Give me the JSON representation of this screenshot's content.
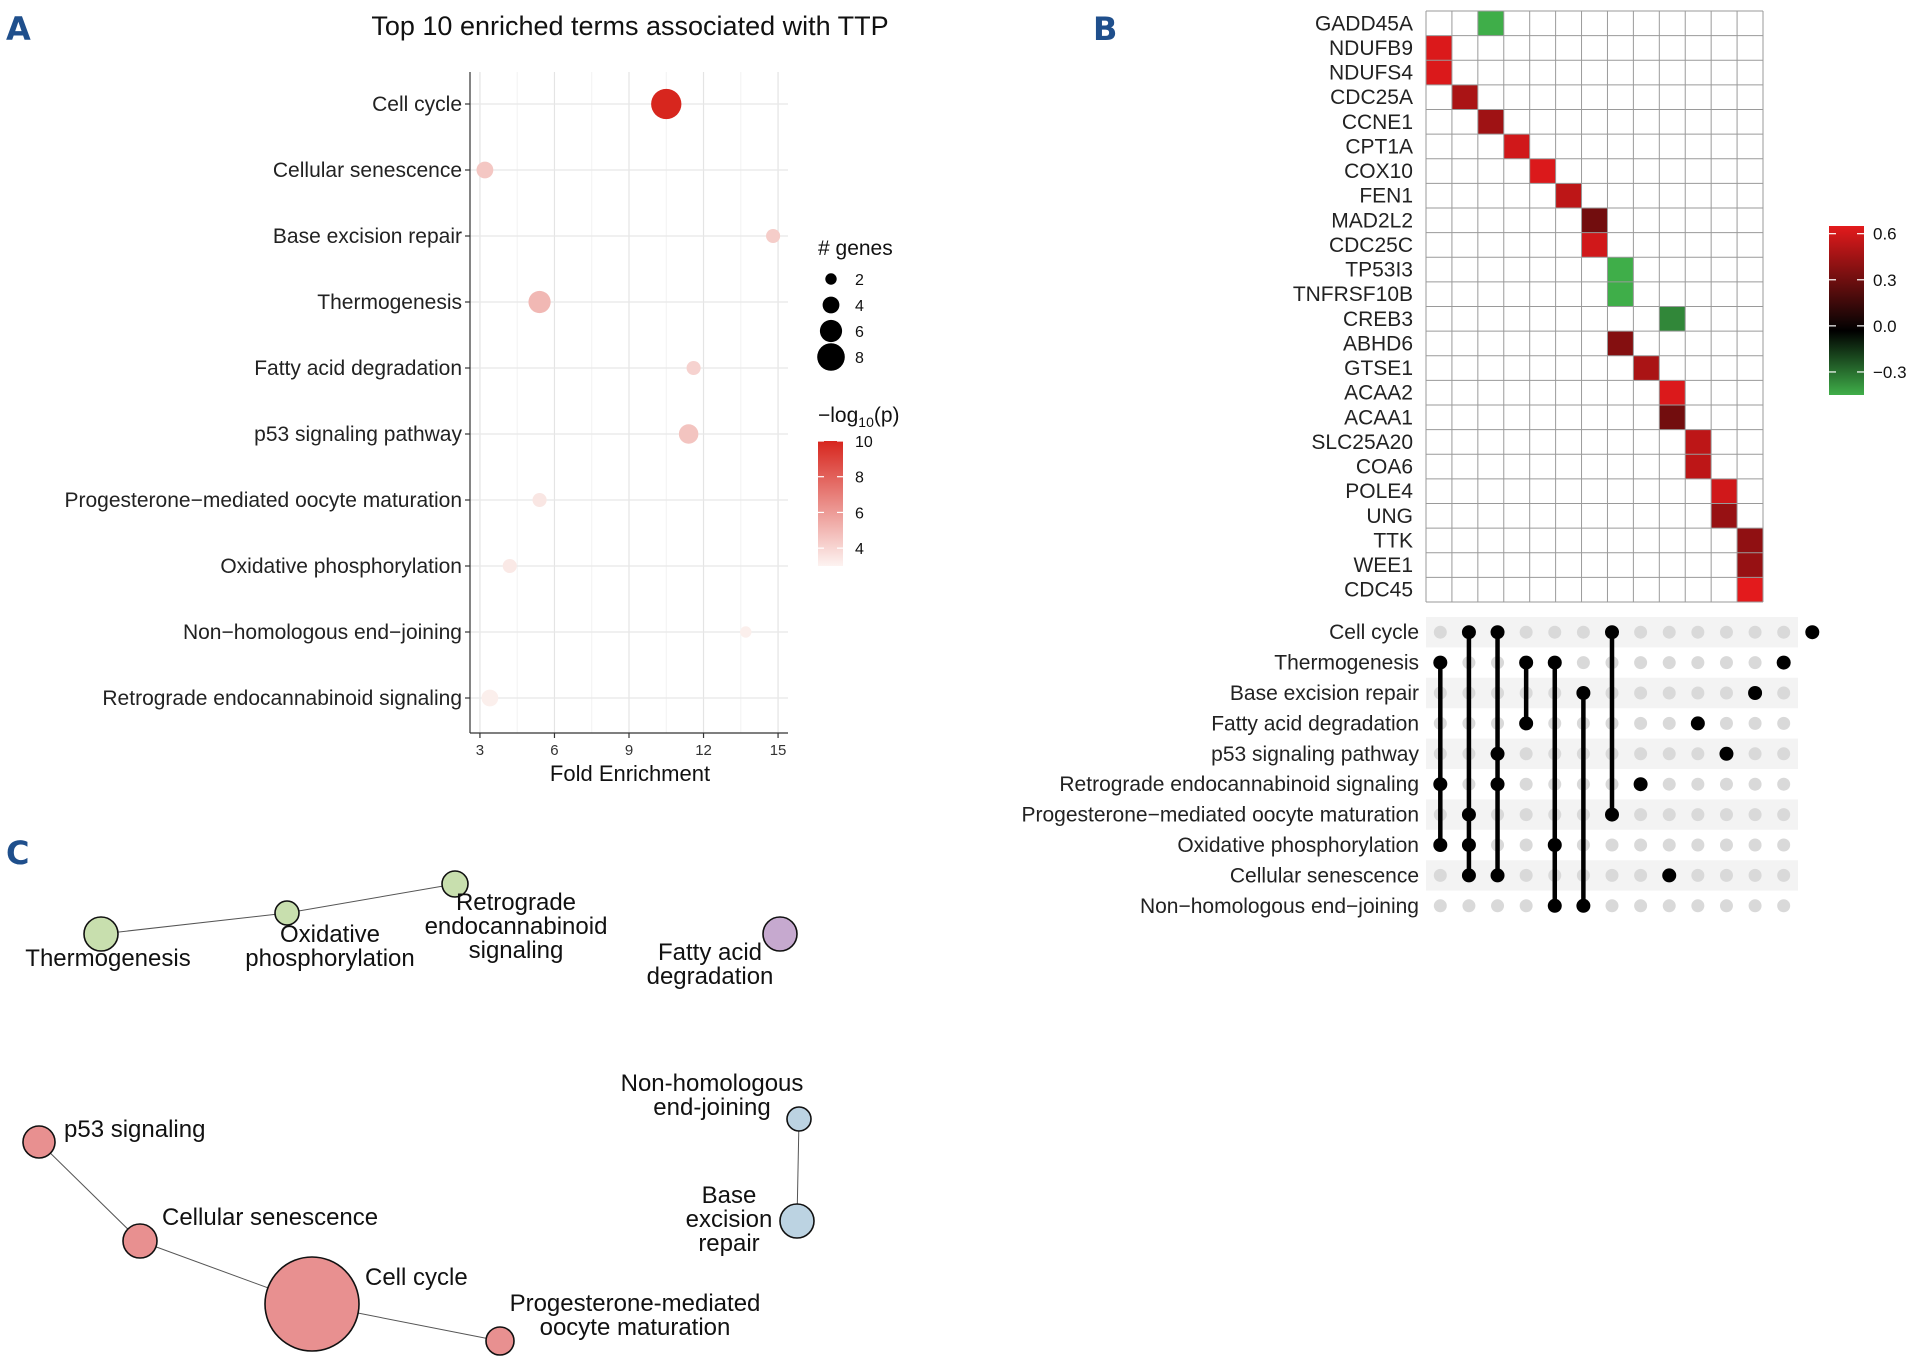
{
  "panel_labels": [
    "A",
    "B",
    "C"
  ],
  "colors": {
    "panel_label": "#1f4f8c",
    "red": "#d7261e",
    "green": "#3fae49",
    "node_green": "#c8dfae",
    "node_red": "#e89090",
    "node_blue": "#bcd3e2",
    "node_purple": "#c6a9cf"
  },
  "chart_data": [
    {
      "type": "scatter",
      "title": "Top 10 enriched terms associated with TTP",
      "xlabel": "Fold Enrichment",
      "ylabel": "",
      "xlim": [
        2.6,
        15.4
      ],
      "x_ticks": [
        3,
        6,
        9,
        12,
        15
      ],
      "grid": true,
      "categories": [
        "Cell cycle",
        "Cellular senescence",
        "Base excision repair",
        "Thermogenesis",
        "Fatty acid degradation",
        "p53 signaling pathway",
        "Progesterone−mediated oocyte maturation",
        "Oxidative phosphorylation",
        "Non−homologous end−joining",
        "Retrograde endocannabinoid signaling"
      ],
      "fold_enrichment": [
        10.5,
        3.2,
        14.8,
        5.4,
        11.6,
        11.4,
        5.4,
        4.2,
        13.7,
        3.4
      ],
      "n_genes": [
        9,
        4,
        3,
        6,
        3,
        5,
        3,
        3,
        2,
        4
      ],
      "neg_log10_p": [
        10.2,
        4.4,
        4.2,
        4.9,
        4.0,
        4.5,
        3.3,
        3.2,
        2.4,
        3.0
      ],
      "legend_size": {
        "title": "# genes",
        "values": [
          2,
          4,
          6,
          8
        ]
      },
      "legend_color": {
        "title_prefix": "−log",
        "title_sub": "10",
        "title_suffix": "(p)",
        "ticks": [
          10,
          8,
          6,
          4
        ],
        "range": [
          3,
          10
        ]
      },
      "legend_position": "right"
    },
    {
      "type": "heatmap",
      "rows": [
        "GADD45A",
        "NDUFB9",
        "NDUFS4",
        "CDC25A",
        "CCNE1",
        "CPT1A",
        "COX10",
        "FEN1",
        "MAD2L2",
        "CDC25C",
        "TP53I3",
        "TNFRSF10B",
        "CREB3",
        "ABHD6",
        "GTSE1",
        "ACAA2",
        "ACAA1",
        "SLC25A20",
        "COA6",
        "POLE4",
        "UNG",
        "TTK",
        "WEE1",
        "CDC45"
      ],
      "n_columns": 12,
      "cells": [
        {
          "row": 0,
          "col": 2,
          "value": -0.45
        },
        {
          "row": 1,
          "col": 0,
          "value": 0.58
        },
        {
          "row": 2,
          "col": 0,
          "value": 0.58
        },
        {
          "row": 3,
          "col": 1,
          "value": 0.45
        },
        {
          "row": 4,
          "col": 2,
          "value": 0.42
        },
        {
          "row": 5,
          "col": 3,
          "value": 0.55
        },
        {
          "row": 6,
          "col": 4,
          "value": 0.58
        },
        {
          "row": 7,
          "col": 5,
          "value": 0.5
        },
        {
          "row": 8,
          "col": 6,
          "value": 0.3
        },
        {
          "row": 9,
          "col": 6,
          "value": 0.55
        },
        {
          "row": 10,
          "col": 7,
          "value": -0.45
        },
        {
          "row": 11,
          "col": 7,
          "value": -0.45
        },
        {
          "row": 12,
          "col": 9,
          "value": -0.35
        },
        {
          "row": 13,
          "col": 7,
          "value": 0.35
        },
        {
          "row": 14,
          "col": 8,
          "value": 0.45
        },
        {
          "row": 15,
          "col": 9,
          "value": 0.58
        },
        {
          "row": 16,
          "col": 9,
          "value": 0.3
        },
        {
          "row": 17,
          "col": 10,
          "value": 0.5
        },
        {
          "row": 18,
          "col": 10,
          "value": 0.5
        },
        {
          "row": 19,
          "col": 11,
          "value": 0.55
        },
        {
          "row": 20,
          "col": 11,
          "value": 0.4
        },
        {
          "row": 21,
          "col": 12,
          "value": 0.38
        },
        {
          "row": 22,
          "col": 12,
          "value": 0.4
        },
        {
          "row": 23,
          "col": 12,
          "value": 0.6
        }
      ],
      "legend": {
        "ticks": [
          0.6,
          0.3,
          0.0,
          -0.3
        ],
        "tick_labels": [
          "0.6",
          "0.3",
          "0.0",
          "−0.3"
        ],
        "range": [
          -0.45,
          0.65
        ]
      },
      "upset": {
        "rows": [
          "Cell cycle",
          "Thermogenesis",
          "Base excision repair",
          "Fatty acid degradation",
          "p53 signaling pathway",
          "Retrograde endocannabinoid signaling",
          "Progesterone−mediated oocyte maturation",
          "Oxidative phosphorylation",
          "Cellular senescence",
          "Non−homologous end−joining"
        ],
        "n_columns": 13,
        "sets": [
          [
            1,
            5,
            7
          ],
          [
            0,
            6,
            7,
            8
          ],
          [
            0,
            4,
            5,
            8
          ],
          [
            1,
            3
          ],
          [
            1,
            7,
            9
          ],
          [
            2,
            9
          ],
          [
            0,
            6
          ],
          [
            5
          ],
          [
            8
          ],
          [
            3
          ],
          [
            4
          ],
          [
            2
          ],
          [
            1
          ],
          [
            0
          ]
        ]
      }
    }
  ],
  "network": {
    "nodes": [
      {
        "id": "thermo",
        "label": [
          "Thermogenesis"
        ],
        "color": "#c8dfae"
      },
      {
        "id": "oxphos",
        "label": [
          "Oxidative",
          "phosphorylation"
        ],
        "color": "#c8dfae"
      },
      {
        "id": "retro",
        "label": [
          "Retrograde",
          "endocannabinoid",
          "signaling"
        ],
        "color": "#c8dfae"
      },
      {
        "id": "fatty",
        "label": [
          "Fatty acid",
          "degradation"
        ],
        "color": "#c6a9cf"
      },
      {
        "id": "nhej",
        "label": [
          "Non-homologous",
          "end-joining"
        ],
        "color": "#bcd3e2"
      },
      {
        "id": "ber",
        "label": [
          "Base",
          "excision",
          "repair"
        ],
        "color": "#bcd3e2"
      },
      {
        "id": "p53",
        "label": [
          "p53 signaling"
        ],
        "color": "#e89090"
      },
      {
        "id": "senes",
        "label": [
          "Cellular senescence"
        ],
        "color": "#e89090"
      },
      {
        "id": "cellcycle",
        "label": [
          "Cell cycle"
        ],
        "color": "#e89090"
      },
      {
        "id": "prog",
        "label": [
          "Progesterone-mediated",
          "oocyte maturation"
        ],
        "color": "#e89090"
      }
    ],
    "edges": [
      [
        "thermo",
        "oxphos"
      ],
      [
        "oxphos",
        "retro"
      ],
      [
        "nhej",
        "ber"
      ],
      [
        "p53",
        "senes"
      ],
      [
        "senes",
        "cellcycle"
      ],
      [
        "cellcycle",
        "prog"
      ]
    ]
  }
}
